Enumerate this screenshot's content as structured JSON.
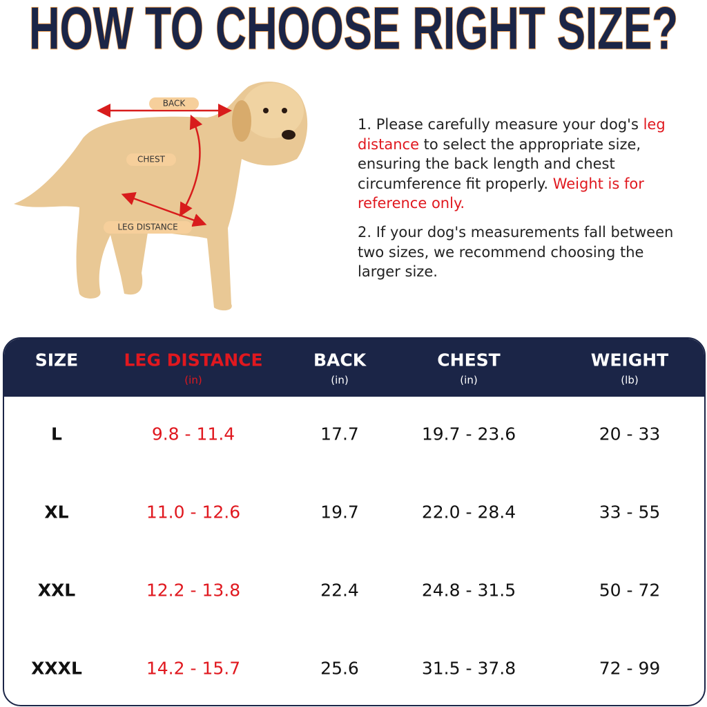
{
  "title": "HOW TO CHOOSE RIGHT SIZE?",
  "diagram": {
    "labels": [
      "BACK",
      "CHEST",
      "LEG DISTANCE"
    ]
  },
  "notes": [
    {
      "parts": [
        {
          "text": "1. Please carefully measure your dog's ",
          "color": "#222222"
        },
        {
          "text": "leg distance",
          "color": "#e0181f"
        },
        {
          "text": " to select the appropriate size, ensuring the back length and chest circumference fit properly. ",
          "color": "#222222"
        },
        {
          "text": "Weight is for reference only.",
          "color": "#e0181f"
        }
      ]
    },
    {
      "parts": [
        {
          "text": "2. If your dog's measurements fall between two sizes, we recommend choosing the larger size.",
          "color": "#222222"
        }
      ]
    }
  ],
  "table": {
    "headers": [
      {
        "label": "SIZE",
        "unit": null,
        "color": "#ffffff"
      },
      {
        "label": "LEG DISTANCE",
        "unit": "(in)",
        "color": "#e0181f"
      },
      {
        "label": "BACK",
        "unit": "(in)",
        "color": "#ffffff"
      },
      {
        "label": "CHEST",
        "unit": "(in)",
        "color": "#ffffff"
      },
      {
        "label": "WEIGHT",
        "unit": "(lb)",
        "color": "#ffffff"
      }
    ],
    "rows": [
      [
        "L",
        "9.8 - 11.4",
        "17.7",
        "19.7 - 23.6",
        "20 - 33"
      ],
      [
        "XL",
        "11.0 - 12.6",
        "19.7",
        "22.0 - 28.4",
        "33 - 55"
      ],
      [
        "XXL",
        "12.2 - 13.8",
        "22.4",
        "24.8 - 31.5",
        "50 - 72"
      ],
      [
        "XXXL",
        "14.2 - 15.7",
        "25.6",
        "31.5 - 37.8",
        "72 - 99"
      ]
    ]
  }
}
